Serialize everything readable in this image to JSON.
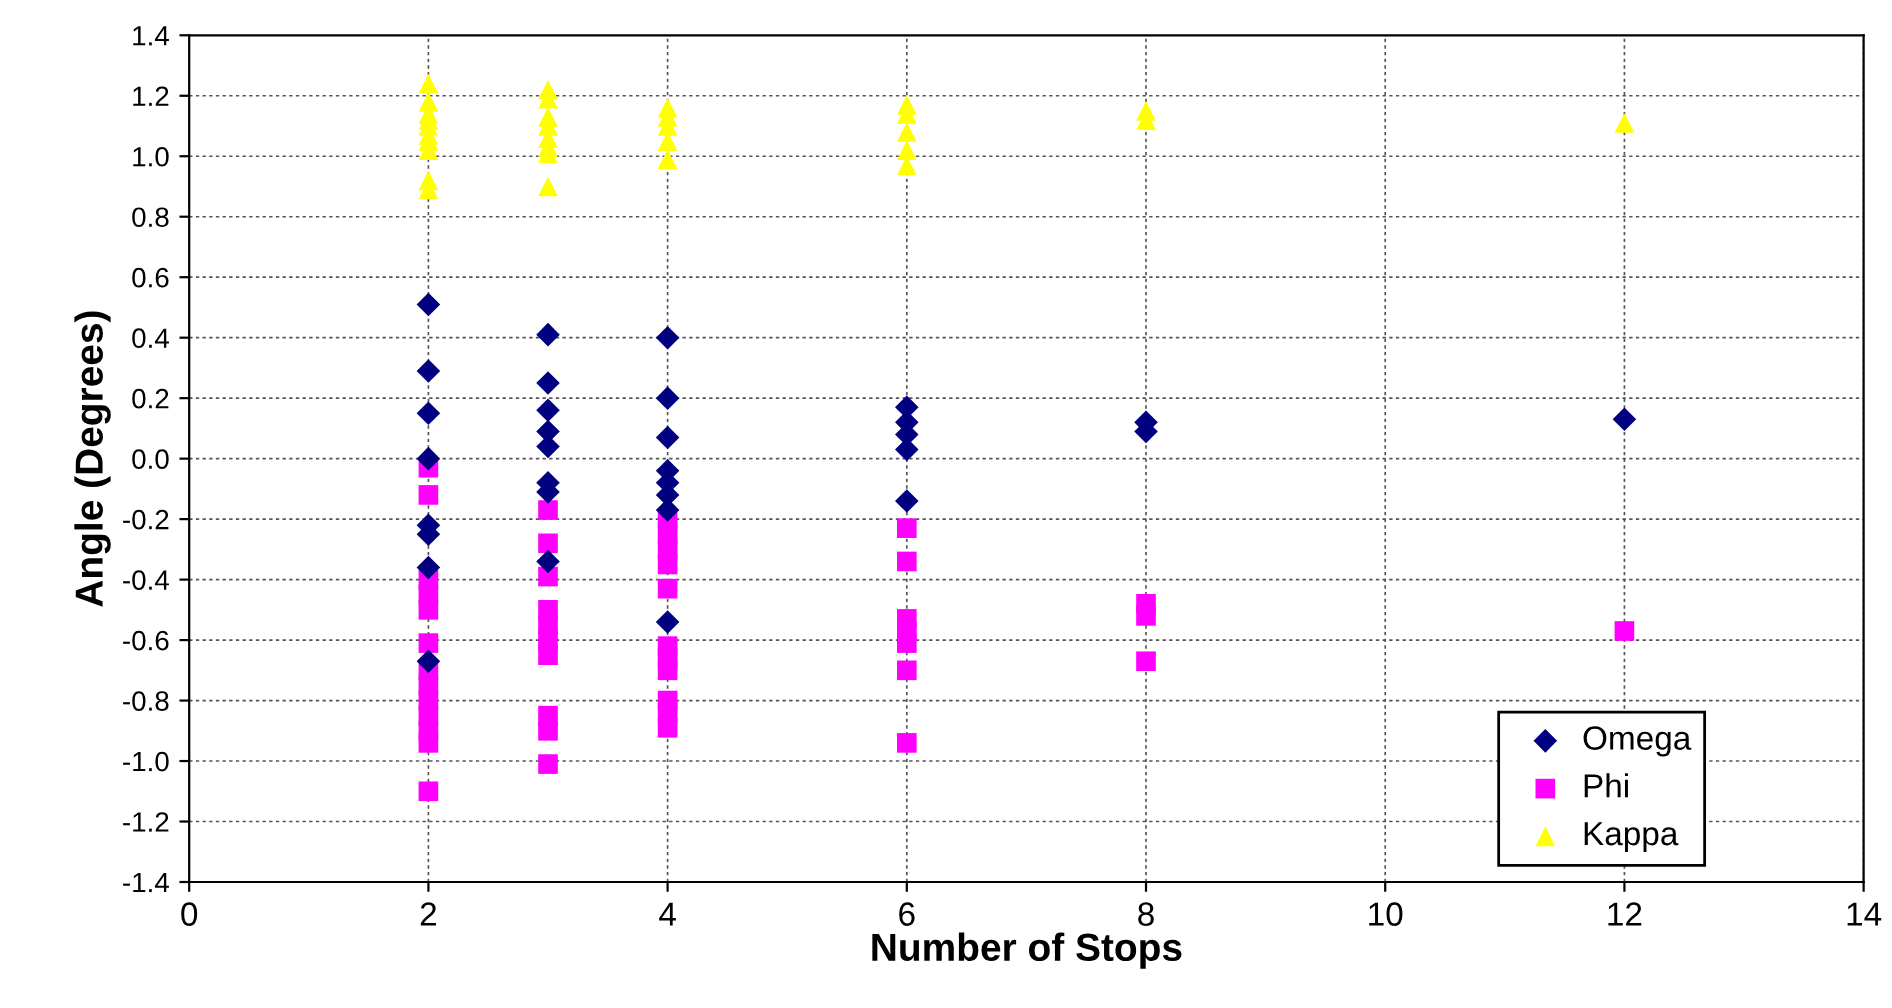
{
  "chart_data": {
    "type": "scatter",
    "xlabel": "Number of Stops",
    "ylabel": "Angle (Degrees)",
    "xlim": [
      0,
      14
    ],
    "xticks": [
      0,
      2,
      4,
      6,
      8,
      10,
      12,
      14
    ],
    "ylim": [
      -1.4,
      1.4
    ],
    "yticks": [
      {
        "value": -1.4,
        "label": "-1.4"
      },
      {
        "value": -1.2,
        "label": "-1.2"
      },
      {
        "value": -1.0,
        "label": "-1.0"
      },
      {
        "value": -0.8,
        "label": "-0.8"
      },
      {
        "value": -0.6,
        "label": "-0.6"
      },
      {
        "value": -0.4,
        "label": "-0.4"
      },
      {
        "value": -0.2,
        "label": "-0.2"
      },
      {
        "value": 0,
        "label": "0.0"
      },
      {
        "value": 0.2,
        "label": "0.2"
      },
      {
        "value": 0.4,
        "label": "0.4"
      },
      {
        "value": 0.6,
        "label": "0.6"
      },
      {
        "value": 0.8,
        "label": "0.8"
      },
      {
        "value": 1.0,
        "label": "1.0"
      },
      {
        "value": 1.2,
        "label": "1.2"
      },
      {
        "value": 1.4,
        "label": "1.4"
      }
    ],
    "grid": true,
    "legend": "bottom right",
    "series": [
      {
        "name": "Omega",
        "color": "#000080",
        "marker": "diamond",
        "x": [
          2,
          2,
          2,
          2,
          2,
          2,
          2,
          2,
          3,
          3,
          3,
          3,
          3,
          3,
          3,
          3,
          4,
          4,
          4,
          4,
          4,
          4,
          4,
          4,
          6,
          6,
          6,
          6,
          6,
          8,
          8,
          12
        ],
        "values": [
          0.51,
          0.29,
          0.15,
          0.0,
          -0.22,
          -0.25,
          -0.36,
          -0.67,
          0.41,
          0.25,
          0.16,
          0.09,
          0.04,
          -0.08,
          -0.11,
          -0.34,
          0.4,
          0.2,
          0.07,
          -0.04,
          -0.08,
          -0.12,
          -0.17,
          -0.54,
          0.17,
          0.12,
          0.08,
          0.03,
          -0.14,
          0.12,
          0.09,
          0.13
        ]
      },
      {
        "name": "Phi",
        "color": "#ff00ff",
        "marker": "square",
        "x": [
          2,
          2,
          2,
          2,
          2,
          2,
          2,
          2,
          2,
          2,
          2,
          2,
          2,
          3,
          3,
          3,
          3,
          3,
          3,
          3,
          3,
          3,
          3,
          4,
          4,
          4,
          4,
          4,
          4,
          4,
          4,
          4,
          4,
          4,
          6,
          6,
          6,
          6,
          6,
          6,
          6,
          8,
          8,
          8,
          12
        ],
        "values": [
          -0.03,
          -0.12,
          -0.4,
          -0.45,
          -0.5,
          -0.61,
          -0.7,
          -0.75,
          -0.8,
          -0.85,
          -0.9,
          -0.94,
          -1.1,
          -0.17,
          -0.28,
          -0.39,
          -0.5,
          -0.55,
          -0.6,
          -0.65,
          -0.85,
          -0.9,
          -1.01,
          -0.2,
          -0.25,
          -0.3,
          -0.35,
          -0.43,
          -0.62,
          -0.66,
          -0.7,
          -0.8,
          -0.84,
          -0.89,
          -0.23,
          -0.34,
          -0.53,
          -0.57,
          -0.61,
          -0.7,
          -0.94,
          -0.48,
          -0.52,
          -0.67,
          -0.57
        ]
      },
      {
        "name": "Kappa",
        "color": "#ffff00",
        "marker": "triangle",
        "x": [
          2,
          2,
          2,
          2,
          2,
          2,
          2,
          2,
          2,
          2,
          3,
          3,
          3,
          3,
          3,
          3,
          3,
          3,
          4,
          4,
          4,
          4,
          4,
          6,
          6,
          6,
          6,
          6,
          8,
          8,
          12
        ],
        "values": [
          1.24,
          1.18,
          1.14,
          1.12,
          1.1,
          1.07,
          1.05,
          1.02,
          0.92,
          0.89,
          1.22,
          1.19,
          1.13,
          1.1,
          1.06,
          1.03,
          1.01,
          0.9,
          1.16,
          1.13,
          1.1,
          1.05,
          0.99,
          1.17,
          1.14,
          1.08,
          1.02,
          0.97,
          1.15,
          1.12,
          1.11
        ]
      }
    ]
  }
}
